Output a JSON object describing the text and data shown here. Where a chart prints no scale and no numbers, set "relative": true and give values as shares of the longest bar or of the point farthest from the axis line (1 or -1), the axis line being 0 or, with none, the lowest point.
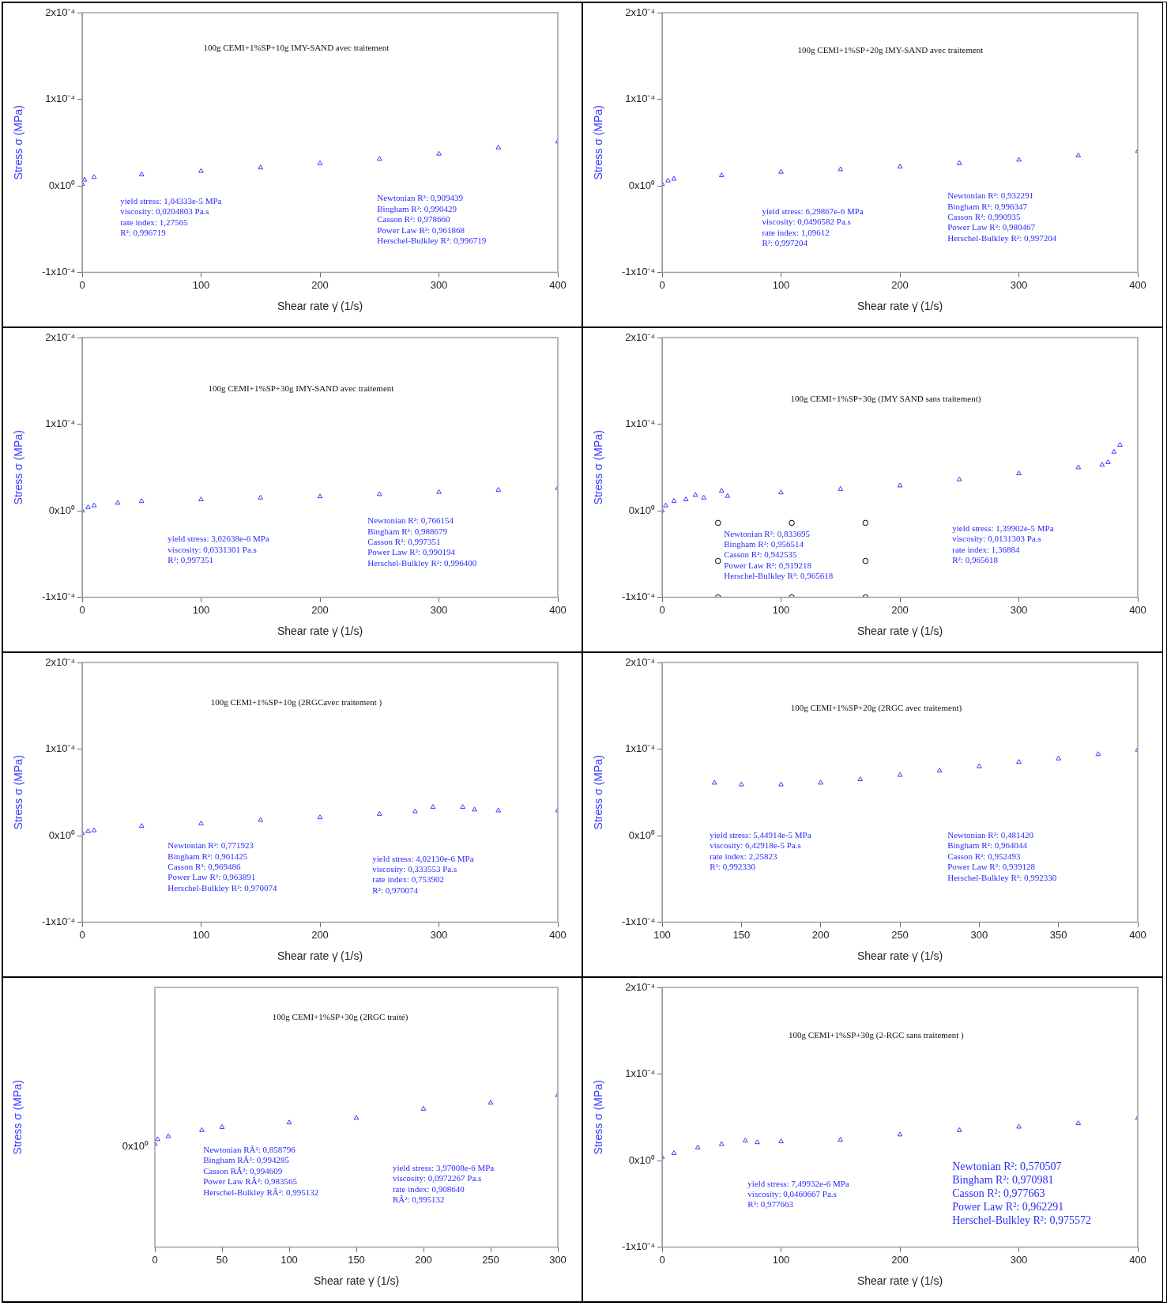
{
  "chart_data": [
    {
      "type": "scatter",
      "title": "100g CEMI+1%SP+10g IMY-SAND avec traitement",
      "xlabel": "Shear rate γ̇ (1/s)",
      "ylabel": "Stress σ (MPa)",
      "marker": "triangle",
      "grid": false,
      "xlim": [
        0,
        400
      ],
      "xticks": [
        0,
        100,
        200,
        300,
        400
      ],
      "ylim": [
        -0.0001,
        0.0002
      ],
      "yticks": [
        {
          "value": -0.0001,
          "label": "-1x10⁻⁴"
        },
        {
          "value": 0,
          "label": "0x10⁰"
        },
        {
          "value": 0.0001,
          "label": "1x10⁻⁴"
        },
        {
          "value": 0.0002,
          "label": "2x10⁻⁴"
        }
      ],
      "x": [
        0,
        2,
        10,
        50,
        100,
        150,
        200,
        250,
        300,
        350,
        400
      ],
      "series": [
        {
          "color": "#3a3aff",
          "values": [
            2e-06,
            7e-06,
            1e-05,
            1.3e-05,
            1.7e-05,
            2.1e-05,
            2.6e-05,
            3.1e-05,
            3.7e-05,
            4.4e-05,
            5.1e-05
          ]
        }
      ],
      "annotations": [
        "yield stress: 1,04333e-5 MPa\nviscosity: 0,0204803 Pa.s\nrate index: 1,27565\nR²: 0,996719",
        "Newtonian R²: 0,909439\nBingham R²: 0,990429\nCasson R²: 0,978660\nPower Law R²: 0,961868\nHerschel-Bulkley R²: 0,996719"
      ]
    },
    {
      "type": "scatter",
      "title": "100g CEMI+1%SP+20g IMY-SAND avec traitement",
      "xlabel": "Shear rate γ̇ (1/s)",
      "ylabel": "Stress σ (MPa)",
      "marker": "triangle",
      "grid": false,
      "xlim": [
        0,
        400
      ],
      "xticks": [
        0,
        100,
        200,
        300,
        400
      ],
      "ylim": [
        -0.0001,
        0.0002
      ],
      "yticks": [
        {
          "value": -0.0001,
          "label": "-1x10⁻⁴"
        },
        {
          "value": 0,
          "label": "0x10⁰"
        },
        {
          "value": 0.0001,
          "label": "1x10⁻⁴"
        },
        {
          "value": 0.0002,
          "label": "2x10⁻⁴"
        }
      ],
      "x": [
        0,
        5,
        10,
        50,
        100,
        150,
        200,
        250,
        300,
        350,
        400
      ],
      "series": [
        {
          "color": "#3a3aff",
          "values": [
            2e-06,
            6e-06,
            8e-06,
            1.2e-05,
            1.6e-05,
            1.9e-05,
            2.2e-05,
            2.6e-05,
            3e-05,
            3.5e-05,
            4e-05
          ]
        }
      ],
      "annotations": [
        "yield stress: 6,29867e-6 MPa\nviscosity: 0,0496582 Pa.s\nrate index: 1,09612\nR²: 0,997204",
        "Newtonian R²: 0,932291\nBingham R²: 0,996347\nCasson R²: 0,990935\nPower Law R²: 0,980467\nHerschel-Bulkley R²: 0,997204"
      ]
    },
    {
      "type": "scatter",
      "title": "100g CEMI+1%SP+30g IMY-SAND avec traitement",
      "xlabel": "Shear rate γ̇ (1/s)",
      "ylabel": "Stress σ (MPa)",
      "marker": "triangle",
      "grid": false,
      "xlim": [
        0,
        400
      ],
      "xticks": [
        0,
        100,
        200,
        300,
        400
      ],
      "ylim": [
        -0.0001,
        0.0002
      ],
      "yticks": [
        {
          "value": -0.0001,
          "label": "-1x10⁻⁴"
        },
        {
          "value": 0,
          "label": "0x10⁰"
        },
        {
          "value": 0.0001,
          "label": "1x10⁻⁴"
        },
        {
          "value": 0.0002,
          "label": "2x10⁻⁴"
        }
      ],
      "x": [
        0,
        5,
        10,
        30,
        50,
        100,
        150,
        200,
        250,
        300,
        350,
        400
      ],
      "series": [
        {
          "color": "#3a3aff",
          "values": [
            0,
            4e-06,
            6e-06,
            9e-06,
            1.1e-05,
            1.3e-05,
            1.5e-05,
            1.65e-05,
            1.9e-05,
            2.15e-05,
            2.4e-05,
            2.6e-05
          ]
        }
      ],
      "annotations": [
        "yield stress: 3,02638e-6 MPa\nviscosity: 0,0331301 Pa.s\nR²: 0,997351",
        "Newtonian R²: 0,766154\nBingham R²: 0,988679\nCasson R²: 0,997351\nPower Law R²: 0,990194\nHerschel-Bulkley R²: 0,996400"
      ]
    },
    {
      "type": "scatter",
      "title": "100g CEMI+1%SP+30g (IMY SAND sans traitement)",
      "xlabel": "Shear rate γ̇ (1/s)",
      "ylabel": "Stress σ (MPa)",
      "marker": "triangle",
      "grid": false,
      "xlim": [
        0,
        400
      ],
      "xticks": [
        0,
        100,
        200,
        300,
        400
      ],
      "ylim": [
        -0.0001,
        0.0002
      ],
      "yticks": [
        {
          "value": -0.0001,
          "label": "-1x10⁻⁴"
        },
        {
          "value": 0,
          "label": "0x10⁰"
        },
        {
          "value": 0.0001,
          "label": "1x10⁻⁴"
        },
        {
          "value": 0.0002,
          "label": "2x10⁻⁴"
        }
      ],
      "x": [
        0,
        3,
        10,
        20,
        28,
        35,
        50,
        55,
        100,
        150,
        200,
        250,
        300,
        350,
        370,
        375,
        380,
        385
      ],
      "series": [
        {
          "color": "#3a3aff",
          "values": [
            0,
            6e-06,
            1.1e-05,
            1.3e-05,
            1.8e-05,
            1.5e-05,
            2.3e-05,
            1.7e-05,
            2.1e-05,
            2.5e-05,
            2.9e-05,
            3.6e-05,
            4.3e-05,
            5e-05,
            5.3e-05,
            5.6e-05,
            6.8e-05,
            7.6e-05
          ]
        },
        {
          "type": "scatter",
          "marker": "circle",
          "color": "#000000",
          "x": [
            47,
            109,
            171,
            47,
            171,
            47,
            109,
            171
          ],
          "values": [
            -1.4e-05,
            -1.4e-05,
            -1.4e-05,
            -5.8e-05,
            -5.8e-05,
            -0.0001,
            -0.0001,
            -0.0001
          ]
        }
      ],
      "annotations": [
        "Newtonian R²: 0,833695\nBingham R²: 0,956514\nCasson R²: 0,942535\nPower Law R²: 0,919218\nHerschel-Bulkley R²: 0,965618",
        "yield stress: 1,39902e-5 MPa\nviscosity: 0,0131303 Pa.s\nrate index: 1,36884\nR²: 0,965618"
      ]
    },
    {
      "type": "scatter",
      "title": "100g CEMI+1%SP+10g (2RGCavec traitement )",
      "xlabel": "Shear rate γ̇ (1/s)",
      "ylabel": "Stress σ (MPa)",
      "marker": "triangle",
      "grid": false,
      "xlim": [
        0,
        400
      ],
      "xticks": [
        0,
        100,
        200,
        300,
        400
      ],
      "ylim": [
        -0.0001,
        0.0002
      ],
      "yticks": [
        {
          "value": -0.0001,
          "label": "-1x10⁻⁴"
        },
        {
          "value": 0,
          "label": "0x10⁰"
        },
        {
          "value": 0.0001,
          "label": "1x10⁻⁴"
        },
        {
          "value": 0.0002,
          "label": "2x10⁻⁴"
        }
      ],
      "x": [
        0,
        5,
        10,
        50,
        100,
        150,
        200,
        250,
        280,
        295,
        320,
        330,
        350,
        400
      ],
      "series": [
        {
          "color": "#3a3aff",
          "values": [
            3e-06,
            5e-06,
            6e-06,
            1.1e-05,
            1.4e-05,
            1.8e-05,
            2.1e-05,
            2.5e-05,
            2.8e-05,
            3.3e-05,
            3.3e-05,
            3e-05,
            2.9e-05,
            2.9e-05
          ]
        }
      ],
      "annotations": [
        "Newtonian R²: 0,771923\nBingham R²: 0,961425\nCasson R²: 0,969486\nPower Law R²: 0,963891\nHerschel-Bulkley R²: 0,970074",
        "yield stress: 4,02130e-6 MPa\nviscosity: 0,333553 Pa.s\nrate index: 0,753902\nR²: 0,970074"
      ]
    },
    {
      "type": "scatter",
      "title": "100g CEMI+1%SP+20g (2RGC avec traitement)",
      "xlabel": "Shear rate γ̇ (1/s)",
      "ylabel": "Stress σ (MPa)",
      "marker": "triangle",
      "grid": false,
      "xlim": [
        100,
        400
      ],
      "xticks": [
        100,
        150,
        200,
        250,
        300,
        350,
        400
      ],
      "ylim": [
        -0.0001,
        0.0002
      ],
      "yticks": [
        {
          "value": -0.0001,
          "label": "-1x10⁻⁴"
        },
        {
          "value": 0,
          "label": "0x10⁰"
        },
        {
          "value": 0.0001,
          "label": "1x10⁻⁴"
        },
        {
          "value": 0.0002,
          "label": "2x10⁻⁴"
        }
      ],
      "x": [
        133,
        150,
        175,
        200,
        225,
        250,
        275,
        300,
        325,
        350,
        375,
        400
      ],
      "series": [
        {
          "color": "#3a3aff",
          "values": [
            6.1e-05,
            5.9e-05,
            5.9e-05,
            6.1e-05,
            6.5e-05,
            7e-05,
            7.5e-05,
            8e-05,
            8.5e-05,
            8.9e-05,
            9.4e-05,
            9.9e-05
          ]
        }
      ],
      "annotations": [
        "yield stress: 5,44914e-5 MPa\nviscosity: 6,42918e-5 Pa.s\nrate index: 2,25823\nR²: 0,992330",
        "Newtonian R²: 0,481420\nBingham R²: 0,964044\nCasson R²: 0,952493\nPower Law R²: 0,939128\nHerschel-Bulkley R²: 0,992330"
      ]
    },
    {
      "type": "scatter",
      "relative": true,
      "title": "100g CEMI+1%SP+30g (2RGC traité)",
      "xlabel": "Shear rate γ̇ (1/s)",
      "ylabel": "Stress σ (MPa)",
      "marker": "triangle",
      "grid": false,
      "xlim": [
        0,
        300
      ],
      "xticks": [
        0,
        50,
        100,
        150,
        200,
        250,
        300
      ],
      "x": [
        0,
        2,
        10,
        35,
        50,
        100,
        150,
        200,
        250,
        300
      ],
      "series": [
        {
          "color": "#3a3aff",
          "values": [
            0.68,
            0.71,
            0.73,
            0.77,
            0.79,
            0.82,
            0.85,
            0.91,
            0.95,
            1
          ]
        }
      ],
      "annotations": [
        "Newtonian RÂ²: 0,858796\nBingham RÂ²: 0,994285\nCasson RÂ²: 0,994609\nPower Law RÂ²: 0,983565\nHerschel-Bulkley RÂ²: 0,995132",
        "yield stress: 3,97008e-6 MPa\nviscosity: 0,0972267 Pa.s\nrate index: 0,908640\nRÂ²: 0,995132",
        "0x10⁰"
      ]
    },
    {
      "type": "scatter",
      "title": "100g CEMI+1%SP+30g (2-RGC sans traitement )",
      "xlabel": "Shear rate γ̇ (1/s)",
      "ylabel": "Stress σ (MPa)",
      "marker": "triangle",
      "grid": false,
      "xlim": [
        0,
        400
      ],
      "xticks": [
        0,
        100,
        200,
        300,
        400
      ],
      "ylim": [
        -0.0001,
        0.0002
      ],
      "yticks": [
        {
          "value": -0.0001,
          "label": "-1x10⁻⁴"
        },
        {
          "value": 0,
          "label": "0x10⁰"
        },
        {
          "value": 0.0001,
          "label": "1x10⁻⁴"
        },
        {
          "value": 0.0002,
          "label": "2x10⁻⁴"
        }
      ],
      "x": [
        0,
        10,
        30,
        50,
        70,
        80,
        100,
        150,
        200,
        250,
        300,
        350,
        400
      ],
      "series": [
        {
          "color": "#3a3aff",
          "values": [
            4e-06,
            8.5e-06,
            1.5e-05,
            1.9e-05,
            2.3e-05,
            2.1e-05,
            2.2e-05,
            2.4e-05,
            3e-05,
            3.5e-05,
            3.9e-05,
            4.3e-05,
            4.9e-05
          ]
        }
      ],
      "annotations": [
        "yield stress: 7,49932e-6 MPa\nviscosity: 0,0460667 Pa.s\nR²: 0,977663",
        "Newtonian R²: 0,570507\nBingham R²: 0,970981\nCasson R²: 0,977663\nPower Law R²: 0,962291\nHerschel-Bulkley R²: 0,975572"
      ]
    }
  ]
}
